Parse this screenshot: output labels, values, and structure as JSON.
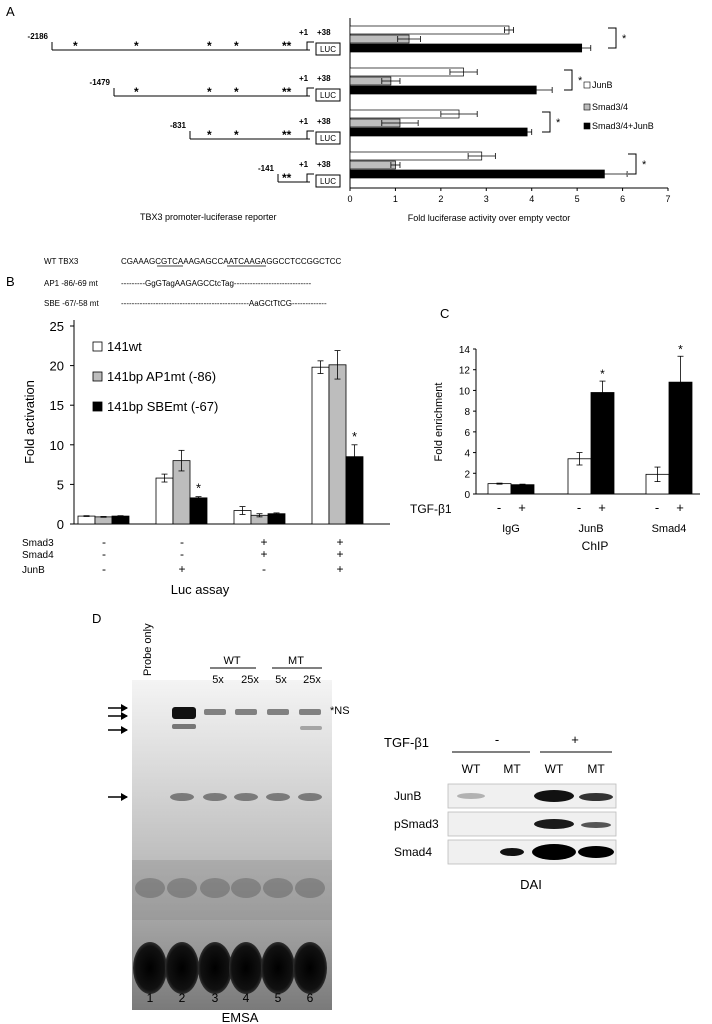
{
  "panels": {
    "A": {
      "label": "A",
      "constructs": [
        {
          "start": "-2186"
        },
        {
          "start": "-1479"
        },
        {
          "start": "-831"
        },
        {
          "start": "-141"
        }
      ],
      "plus_one": "+1",
      "plus_38": "+38",
      "luc": "LUC",
      "star": "*",
      "double_star": "**",
      "xlabel_left": "TBX3 promoter-luciferase reporter"
    },
    "B": {
      "label": "B",
      "seq_rows": [
        {
          "name": "WT TBX3",
          "seq": "CGAAAGCGTCAAAGAGCCAATCAAGAGGCCTCCGGCTCC"
        },
        {
          "name": "AP1 -86/-69 mt",
          "seq": "---------GgGTagAAGAGCCtcTag-----------------------------"
        },
        {
          "name": "SBE -67/-58 mt",
          "seq": "------------------------------------------------AaGCtTtCG-------------"
        }
      ],
      "treatment_rows": [
        {
          "name": "Smad3",
          "marks": [
            "-",
            "-",
            "+",
            "+"
          ]
        },
        {
          "name": "Smad4",
          "marks": [
            "-",
            "-",
            "+",
            "+"
          ]
        },
        {
          "name": "JunB",
          "marks": [
            "-",
            "+",
            "-",
            "+"
          ]
        }
      ],
      "xlabel": "Luc assay",
      "star": "*"
    },
    "C": {
      "label": "C",
      "treatment_name": "TGF-β1",
      "marks": [
        "-",
        "+",
        "-",
        "+",
        "-",
        "+"
      ],
      "groups": [
        "IgG",
        "JunB",
        "Smad4"
      ],
      "xlabel": "ChIP",
      "star": "*"
    },
    "D": {
      "label": "D",
      "probe_only": "Probe only",
      "wt": "WT",
      "mt": "MT",
      "conc": [
        "5x",
        "25x",
        "5x",
        "25x"
      ],
      "ns_label": "*NS",
      "lanes": [
        "1",
        "2",
        "3",
        "4",
        "5",
        "6"
      ],
      "emsa_label": "EMSA",
      "blot": {
        "treatment": "TGF-β1",
        "minus": "-",
        "plus": "+",
        "lane_labels": [
          "WT",
          "MT",
          "WT",
          "MT"
        ],
        "rows": [
          "JunB",
          "pSmad3",
          "Smad4"
        ],
        "footer": "DAI"
      }
    }
  },
  "chart_data": [
    {
      "type": "bar",
      "orientation": "horizontal",
      "categories": [
        "-2186",
        "-1479",
        "-831",
        "-141"
      ],
      "series": [
        {
          "name": "JunB",
          "values": [
            3.5,
            2.5,
            2.4,
            2.9
          ],
          "errors": [
            0.1,
            0.3,
            0.4,
            0.3
          ],
          "color": "#ffffff"
        },
        {
          "name": "Smad3/4",
          "values": [
            1.3,
            0.9,
            1.1,
            1.0
          ],
          "errors": [
            0.25,
            0.2,
            0.4,
            0.1
          ],
          "color": "#bdbdbd"
        },
        {
          "name": "Smad3/4+JunB",
          "values": [
            5.1,
            4.1,
            3.9,
            5.6
          ],
          "errors": [
            0.2,
            0.35,
            0.1,
            0.5
          ],
          "color": "#000000"
        }
      ],
      "xlabel": "Fold luciferase activity over empty vector",
      "xlim": [
        0,
        7
      ],
      "xticks": [
        0,
        1,
        2,
        3,
        4,
        5,
        6,
        7
      ],
      "legend": "right",
      "significance": [
        "*",
        "*",
        "*",
        "*"
      ]
    },
    {
      "type": "bar",
      "categories": [
        "1",
        "2",
        "3",
        "4"
      ],
      "series": [
        {
          "name": "141wt",
          "values": [
            1.0,
            5.8,
            1.7,
            19.8
          ],
          "errors": [
            0.05,
            0.5,
            0.5,
            0.8
          ],
          "color": "#ffffff"
        },
        {
          "name": "141bp AP1mt (-86)",
          "values": [
            0.9,
            8.0,
            1.1,
            20.1
          ],
          "errors": [
            0.05,
            1.3,
            0.2,
            1.8
          ],
          "color": "#bdbdbd"
        },
        {
          "name": "141bp SBEmt (-67)",
          "values": [
            1.0,
            3.3,
            1.3,
            8.5
          ],
          "errors": [
            0.05,
            0.15,
            0.1,
            1.5
          ],
          "color": "#000000"
        }
      ],
      "ylabel": "Fold activation",
      "ylim": [
        0,
        25
      ],
      "yticks": [
        0,
        5,
        10,
        15,
        20,
        25
      ],
      "legend": "top-left",
      "significance": [
        null,
        "*",
        null,
        "*"
      ]
    },
    {
      "type": "bar",
      "categories": [
        "IgG",
        "JunB",
        "Smad4"
      ],
      "series": [
        {
          "values": [
            1.0,
            3.4,
            1.9
          ],
          "errors": [
            0.05,
            0.6,
            0.7
          ],
          "color": "#ffffff"
        },
        {
          "values": [
            0.9,
            9.8,
            10.8
          ],
          "errors": [
            0.05,
            1.1,
            2.5
          ],
          "color": "#000000"
        }
      ],
      "ylabel": "Fold enrichment",
      "ylim": [
        0,
        14
      ],
      "yticks": [
        0,
        2,
        4,
        6,
        8,
        10,
        12,
        14
      ],
      "significance": [
        null,
        "*",
        "*"
      ]
    }
  ],
  "colors": {
    "axis": "#333333",
    "gray_bar": "#bdbdbd",
    "black_bar": "#000000"
  }
}
